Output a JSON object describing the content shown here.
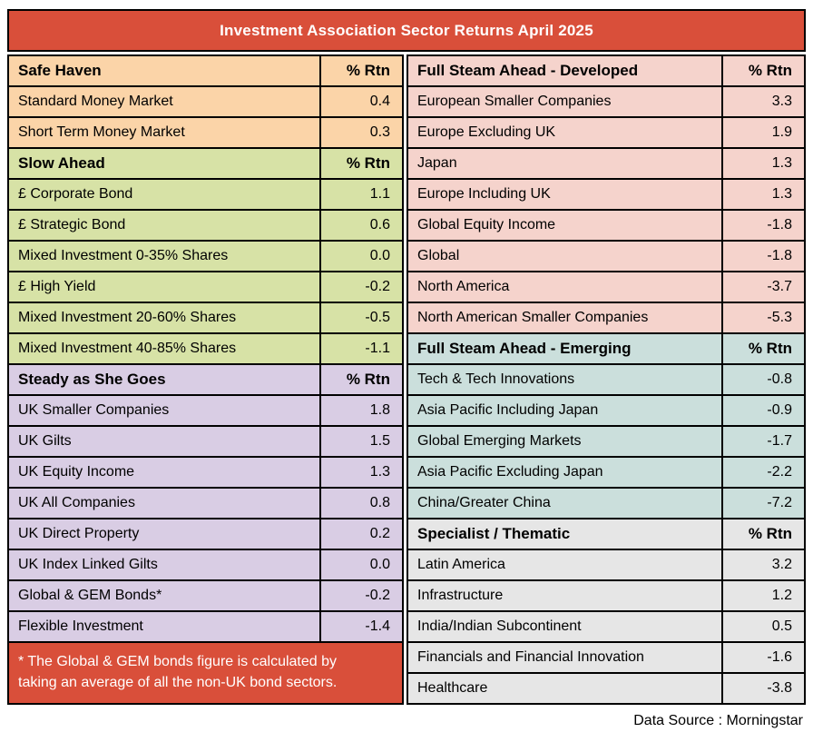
{
  "chart_data": {
    "type": "table",
    "title": "Investment Association Sector Returns April 2025",
    "value_column_header": "% Rtn",
    "left_sections": [
      {
        "name": "Safe Haven",
        "color": "#FBD4A8",
        "rows": [
          {
            "label": "Standard Money Market",
            "value": "0.4"
          },
          {
            "label": "Short Term Money Market",
            "value": "0.3"
          }
        ]
      },
      {
        "name": "Slow Ahead",
        "color": "#D7E2A6",
        "rows": [
          {
            "label": "£ Corporate Bond",
            "value": "1.1"
          },
          {
            "label": "£ Strategic Bond",
            "value": "0.6"
          },
          {
            "label": "Mixed Investment 0-35% Shares",
            "value": "0.0"
          },
          {
            "label": "£ High Yield",
            "value": "-0.2"
          },
          {
            "label": "Mixed Investment 20-60% Shares",
            "value": "-0.5"
          },
          {
            "label": "Mixed Investment 40-85% Shares",
            "value": "-1.1"
          }
        ]
      },
      {
        "name": "Steady as She Goes",
        "color": "#D9CDE4",
        "rows": [
          {
            "label": "UK Smaller Companies",
            "value": "1.8"
          },
          {
            "label": "UK Gilts",
            "value": "1.5"
          },
          {
            "label": "UK Equity Income",
            "value": "1.3"
          },
          {
            "label": "UK All Companies",
            "value": "0.8"
          },
          {
            "label": "UK Direct Property",
            "value": "0.2"
          },
          {
            "label": "UK Index Linked Gilts",
            "value": "0.0"
          },
          {
            "label": "Global & GEM Bonds*",
            "value": "-0.2"
          },
          {
            "label": "Flexible Investment",
            "value": "-1.4"
          }
        ]
      }
    ],
    "right_sections": [
      {
        "name": "Full Steam Ahead - Developed",
        "color": "#F5D3CC",
        "rows": [
          {
            "label": "European Smaller Companies",
            "value": "3.3"
          },
          {
            "label": "Europe Excluding UK",
            "value": "1.9"
          },
          {
            "label": "Japan",
            "value": "1.3"
          },
          {
            "label": "Europe Including UK",
            "value": "1.3"
          },
          {
            "label": "Global Equity Income",
            "value": "-1.8"
          },
          {
            "label": "Global",
            "value": "-1.8"
          },
          {
            "label": "North America",
            "value": "-3.7"
          },
          {
            "label": "North American Smaller Companies",
            "value": "-5.3"
          }
        ]
      },
      {
        "name": "Full Steam Ahead - Emerging",
        "color": "#CBDFDC",
        "rows": [
          {
            "label": "Tech & Tech Innovations",
            "value": "-0.8"
          },
          {
            "label": "Asia Pacific Including Japan",
            "value": "-0.9"
          },
          {
            "label": "Global Emerging Markets",
            "value": "-1.7"
          },
          {
            "label": "Asia Pacific Excluding Japan",
            "value": "-2.2"
          },
          {
            "label": "China/Greater China",
            "value": "-7.2"
          }
        ]
      },
      {
        "name": "Specialist / Thematic",
        "color": "#E6E6E6",
        "rows": [
          {
            "label": "Latin America",
            "value": "3.2"
          },
          {
            "label": "Infrastructure",
            "value": "1.2"
          },
          {
            "label": "India/Indian Subcontinent",
            "value": "0.5"
          },
          {
            "label": "Financials and Financial Innovation",
            "value": "-1.6"
          },
          {
            "label": "Healthcare",
            "value": "-3.8"
          }
        ]
      }
    ],
    "footnote_lines": [
      "* The Global & GEM bonds figure is calculated by",
      "taking an average of all the non-UK bond sectors."
    ],
    "data_source": "Data Source : Morningstar"
  },
  "colors": {
    "banner_red": "#D94F3A",
    "footnote_red": "#D94F3A",
    "safe_haven": "#FBD4A8",
    "slow_ahead": "#D7E2A6",
    "steady_as_she_goes": "#D9CDE4",
    "full_steam_developed": "#F5D3CC",
    "full_steam_emerging": "#CBDFDC",
    "specialist_thematic": "#E6E6E6",
    "border": "#000000",
    "title_text": "#FFFFFF"
  }
}
